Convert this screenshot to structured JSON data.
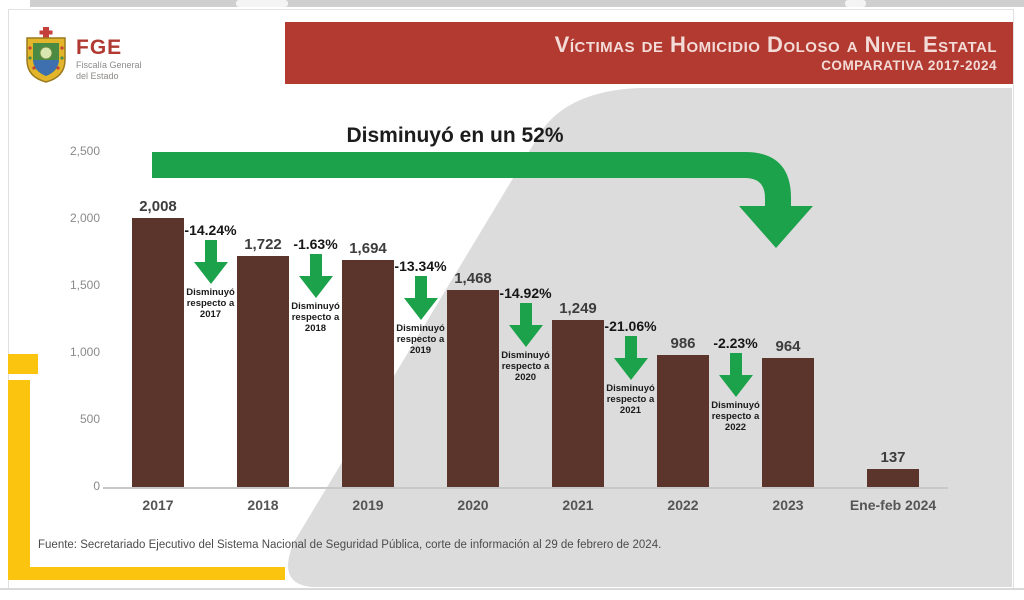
{
  "logo": {
    "acronym": "FGE",
    "line1": "Fiscalía General",
    "line2": "del Estado"
  },
  "banner": {
    "title": "Víctimas de Homicidio Doloso a Nivel Estatal",
    "subtitle": "COMPARATIVA 2017-2024"
  },
  "chart_data": {
    "type": "bar",
    "title": "Disminuyó en un 52%",
    "categories": [
      "2017",
      "2018",
      "2019",
      "2020",
      "2021",
      "2022",
      "2023",
      "Ene-feb 2024"
    ],
    "values": [
      2008,
      1722,
      1694,
      1468,
      1249,
      986,
      964,
      137
    ],
    "value_labels": [
      "2,008",
      "1,722",
      "1,694",
      "1,468",
      "1,249",
      "986",
      "964",
      "137"
    ],
    "y_ticks": [
      {
        "label": "2,500",
        "value": 2500
      },
      {
        "label": "2,000",
        "value": 2000
      },
      {
        "label": "1,500",
        "value": 1500
      },
      {
        "label": "1,000",
        "value": 1000
      },
      {
        "label": "500",
        "value": 500
      },
      {
        "label": "0",
        "value": 0
      }
    ],
    "ylim": [
      0,
      2500
    ],
    "xlabel": "",
    "ylabel": "",
    "grid": "baseline-only",
    "legend": "none",
    "annotations": [
      {
        "pct": "-14.24%",
        "label": "Disminuyó\nrespecto a\n2017"
      },
      {
        "pct": "-1.63%",
        "label": "Disminuyó\nrespecto a\n2018"
      },
      {
        "pct": "-13.34%",
        "label": "Disminuyó\nrespecto a\n2019"
      },
      {
        "pct": "-14.92%",
        "label": "Disminuyó\nrespecto a\n2020"
      },
      {
        "pct": "-21.06%",
        "label": "Disminuyó\nrespecto a\n2021"
      },
      {
        "pct": "-2.23%",
        "label": "Disminuyó\nrespecto a\n2022"
      }
    ]
  },
  "footer": {
    "source": "Fuente: Secretariado Ejecutivo del Sistema Nacional de Seguridad Pública, corte de información al 29 de febrero de 2024."
  },
  "colors": {
    "banner_red": "#b23a31",
    "banner_text": "#f3dbd7",
    "bar_brown": "#5b352c",
    "arrow_green": "#1ca24b",
    "accent_yellow": "#fbc40f",
    "blob_gray": "#dcdcdc"
  }
}
